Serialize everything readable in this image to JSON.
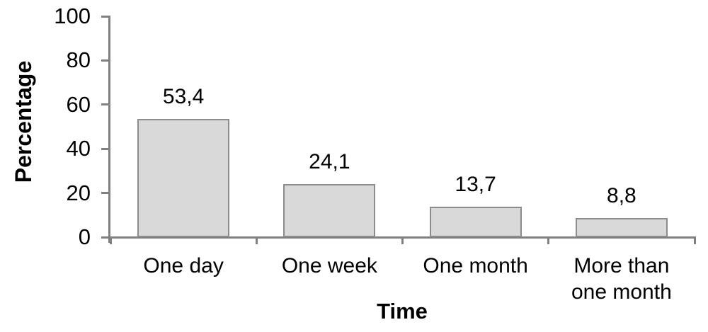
{
  "chart_data": {
    "type": "bar",
    "title": "",
    "categories": [
      "One day",
      "One week",
      "One month",
      "More than one month"
    ],
    "category_lines": [
      [
        "One day"
      ],
      [
        "One week"
      ],
      [
        "One month"
      ],
      [
        "More than",
        "one month"
      ]
    ],
    "values": [
      53.4,
      24.1,
      13.7,
      8.8
    ],
    "value_labels": [
      "53,4",
      "24,1",
      "13,7",
      "8,8"
    ],
    "xlabel": "Time",
    "ylabel": "Percentage",
    "ylim": [
      0,
      100
    ],
    "yticks": [
      0,
      20,
      40,
      60,
      80,
      100
    ],
    "ytick_labels": [
      "0",
      "20",
      "40",
      "60",
      "80",
      "100"
    ],
    "grid": false,
    "legend": "none",
    "colors": {
      "bar_fill": "#d9d9d9",
      "bar_border": "#8c8c8c",
      "axis": "#808080",
      "text": "#000000",
      "background": "#ffffff"
    }
  }
}
